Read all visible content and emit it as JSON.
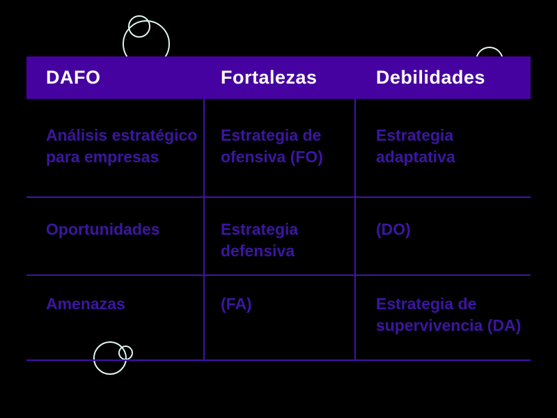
{
  "theme": {
    "background": "#000000",
    "header_bg": "#4602a0",
    "header_text": "#ffffff",
    "body_text": "#3c16a2",
    "grid_line": "#4511ad",
    "circle_stroke": "#dff8f0"
  },
  "table": {
    "header": {
      "columns": [
        "DAFO",
        "Fortalezas",
        "Debilidades"
      ]
    },
    "rows": [
      {
        "cells": [
          "Análisis estratégico\npara empresas",
          "Estrategia de\nofensiva (FO)",
          "Estrategia\nadaptativa"
        ]
      },
      {
        "cells": [
          "Oportunidades",
          "Estrategia\ndefensiva",
          "(DO)"
        ]
      },
      {
        "cells": [
          "Amenazas",
          "(FA)",
          "Estrategia de\nsupervivencia (DA)"
        ]
      }
    ]
  }
}
